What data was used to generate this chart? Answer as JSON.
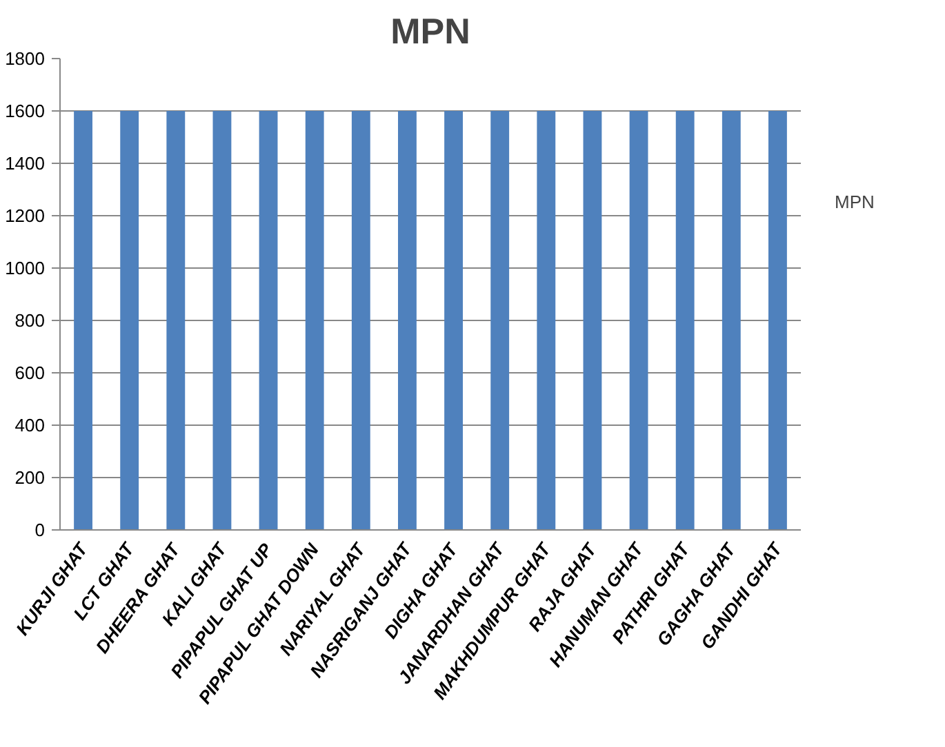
{
  "chart_data": {
    "type": "bar",
    "title": "MPN",
    "categories": [
      "KURJI GHAT",
      "LCT GHAT",
      "DHEERA GHAT",
      "KALI GHAT",
      "PIPAPUL GHAT UP",
      "PIPAPUL GHAT DOWN",
      "NARIYAL GHAT",
      "NASRIGANJ GHAT",
      "DIGHA GHAT",
      "JANARDHAN GHAT",
      "MAKHDUMPUR GHAT",
      "RAJA GHAT",
      "HANUMAN GHAT",
      "PATHRI GHAT",
      "GAGHA GHAT",
      "GANDHI GHAT"
    ],
    "series": [
      {
        "name": "MPN",
        "color": "#4f81bd",
        "values": [
          1600,
          1600,
          1600,
          1600,
          1600,
          1600,
          1600,
          1600,
          1600,
          1600,
          1600,
          1600,
          1600,
          1600,
          1600,
          1600
        ]
      }
    ],
    "ylim": [
      0,
      1800
    ],
    "yticks": [
      0,
      200,
      400,
      600,
      800,
      1000,
      1200,
      1400,
      1600,
      1800
    ],
    "grid": "y",
    "legend": "right"
  }
}
